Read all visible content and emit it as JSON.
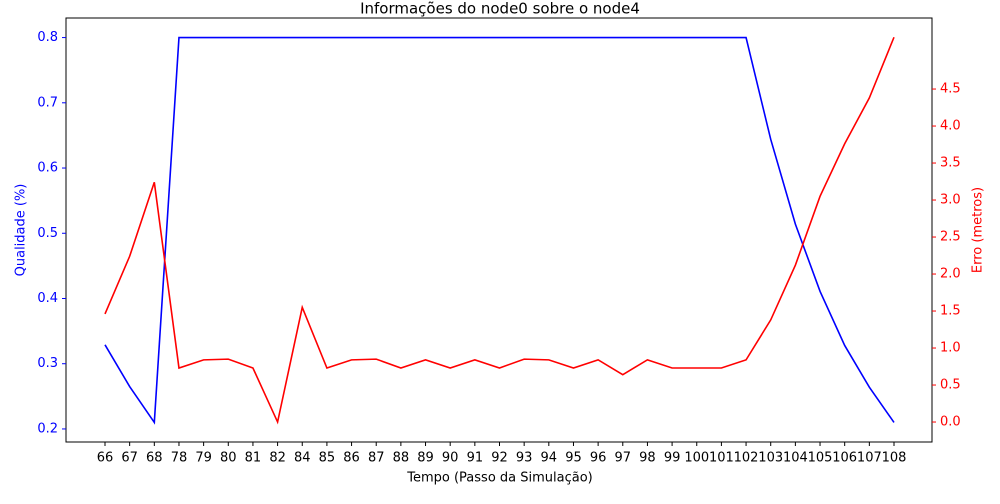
{
  "chart_data": {
    "type": "line",
    "title": "Informações do node0 sobre o node4",
    "x_label": "Tempo (Passo da Simulação)",
    "y_label": "Qualidade (%)",
    "y2_label": "Erro (metros)",
    "categories": [
      "66",
      "67",
      "68",
      "78",
      "79",
      "80",
      "81",
      "82",
      "84",
      "85",
      "86",
      "87",
      "88",
      "89",
      "90",
      "91",
      "92",
      "93",
      "94",
      "95",
      "96",
      "97",
      "98",
      "99",
      "100",
      "101",
      "102",
      "103",
      "104",
      "105",
      "106",
      "107",
      "108"
    ],
    "series": [
      {
        "name": "Qualidade",
        "color": "#0000ff",
        "axis": "y",
        "values": [
          0.329,
          0.265,
          0.21,
          0.8,
          0.8,
          0.8,
          0.8,
          0.8,
          0.8,
          0.8,
          0.8,
          0.8,
          0.8,
          0.8,
          0.8,
          0.8,
          0.8,
          0.8,
          0.8,
          0.8,
          0.8,
          0.8,
          0.8,
          0.8,
          0.8,
          0.8,
          0.8,
          0.644,
          0.514,
          0.411,
          0.328,
          0.264,
          0.21
        ]
      },
      {
        "name": "Erro",
        "color": "#ff0000",
        "axis": "y2",
        "values": [
          1.46,
          2.24,
          3.24,
          0.73,
          0.84,
          0.85,
          0.73,
          0,
          1.55,
          0.73,
          0.84,
          0.85,
          0.73,
          0.84,
          0.73,
          0.84,
          0.73,
          0.85,
          0.84,
          0.73,
          0.84,
          0.64,
          0.84,
          0.73,
          0.73,
          0.73,
          0.84,
          1.38,
          2.12,
          3.05,
          3.76,
          4.38,
          5.2
        ]
      }
    ],
    "ylim": [
      0.18,
      0.83
    ],
    "yticks": [
      0.2,
      0.3,
      0.4,
      0.5,
      0.6,
      0.7,
      0.8
    ],
    "y2lim": [
      -0.27,
      5.46
    ],
    "y2ticks": [
      {
        "value": 0,
        "label": "0.0"
      },
      0.5,
      {
        "value": 1,
        "label": "1.0"
      },
      1.5,
      {
        "value": 2,
        "label": "2.0"
      },
      2.5,
      {
        "value": 3,
        "label": "3.0"
      },
      3.5,
      {
        "value": 4,
        "label": "4.0"
      },
      4.5
    ]
  }
}
